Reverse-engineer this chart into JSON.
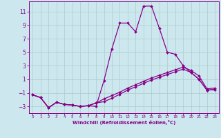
{
  "xlabel": "Windchill (Refroidissement éolien,°C)",
  "bg_color": "#cce8ee",
  "line_color": "#880088",
  "grid_color": "#aacccc",
  "xlim": [
    -0.5,
    23.5
  ],
  "ylim": [
    -4.0,
    12.5
  ],
  "xticks": [
    0,
    1,
    2,
    3,
    4,
    5,
    6,
    7,
    8,
    9,
    10,
    11,
    12,
    13,
    14,
    15,
    16,
    17,
    18,
    19,
    20,
    21,
    22,
    23
  ],
  "yticks": [
    -3,
    -1,
    1,
    3,
    5,
    7,
    9,
    11
  ],
  "line1_x": [
    0,
    1,
    2,
    3,
    4,
    5,
    6,
    7,
    8,
    9,
    10,
    11,
    12,
    13,
    14,
    15,
    16,
    17,
    18,
    19,
    20,
    21,
    22,
    23
  ],
  "line1_y": [
    -1.3,
    -1.7,
    -3.2,
    -2.4,
    -2.7,
    -2.8,
    -3.0,
    -2.9,
    -3.0,
    0.8,
    5.5,
    9.3,
    9.3,
    8.0,
    11.8,
    11.8,
    8.5,
    5.0,
    4.7,
    3.0,
    2.0,
    1.0,
    -0.6,
    -0.5
  ],
  "line2_x": [
    0,
    1,
    2,
    3,
    4,
    5,
    6,
    7,
    8,
    9,
    10,
    11,
    12,
    13,
    14,
    15,
    16,
    17,
    18,
    19,
    20,
    21,
    22,
    23
  ],
  "line2_y": [
    -1.3,
    -1.7,
    -3.2,
    -2.4,
    -2.7,
    -2.8,
    -3.0,
    -2.9,
    -2.5,
    -2.3,
    -1.8,
    -1.2,
    -0.6,
    -0.1,
    0.4,
    0.9,
    1.3,
    1.7,
    2.1,
    2.5,
    2.0,
    1.0,
    -0.6,
    -0.5
  ],
  "line3_x": [
    0,
    1,
    2,
    3,
    4,
    5,
    6,
    7,
    8,
    9,
    10,
    11,
    12,
    13,
    14,
    15,
    16,
    17,
    18,
    19,
    20,
    21,
    22,
    23
  ],
  "line3_y": [
    -1.3,
    -1.7,
    -3.2,
    -2.4,
    -2.7,
    -2.8,
    -3.0,
    -2.9,
    -2.5,
    -1.9,
    -1.4,
    -0.9,
    -0.3,
    0.2,
    0.7,
    1.2,
    1.6,
    2.0,
    2.4,
    2.8,
    2.3,
    1.5,
    -0.4,
    -0.3
  ]
}
